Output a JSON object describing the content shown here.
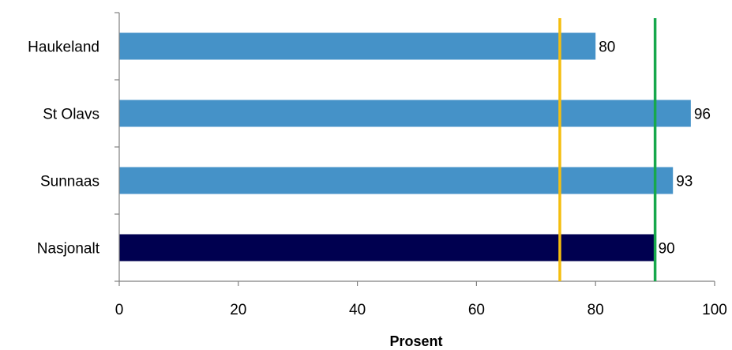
{
  "chart_data": {
    "type": "bar",
    "orientation": "horizontal",
    "categories": [
      "Haukeland",
      "St Olavs",
      "Sunnaas",
      "Nasjonalt"
    ],
    "values": [
      80,
      96,
      93,
      90
    ],
    "data_labels": [
      "80",
      "96",
      "93",
      "90"
    ],
    "bar_colors": [
      "#4592c8",
      "#4592c8",
      "#4592c8",
      "#000050"
    ],
    "xlabel": "Prosent",
    "ylabel": "",
    "xlim": [
      0,
      100
    ],
    "xticks": [
      0,
      20,
      40,
      60,
      80,
      100
    ],
    "xtick_labels": [
      "0",
      "20",
      "40",
      "60",
      "80",
      "100"
    ],
    "reference_lines": [
      {
        "x": 74,
        "color": "#f5be0f"
      },
      {
        "x": 90,
        "color": "#17a84c"
      }
    ],
    "grid": false,
    "legend": "none"
  }
}
